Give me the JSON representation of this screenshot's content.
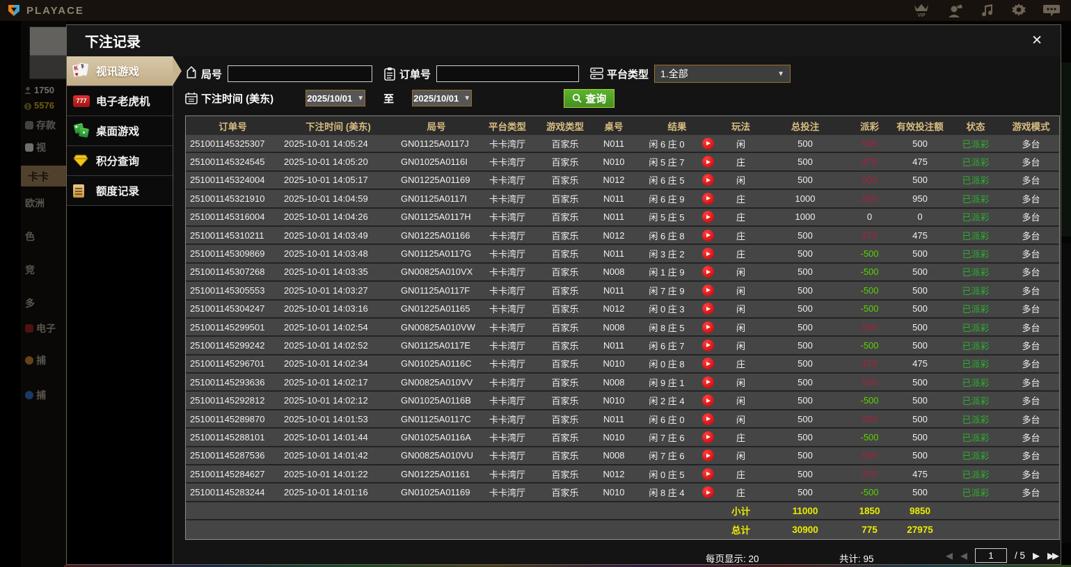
{
  "topbar": {
    "logo_text": "PLAYACE",
    "icons": [
      "vip-icon",
      "account-icon",
      "music-icon",
      "settings-icon",
      "chat-icon"
    ]
  },
  "background": {
    "balance_primary": "1750",
    "balance_secondary": "5576",
    "deposit_label": "存款",
    "menu_items": [
      "视",
      "卡卡",
      "欧洲",
      "色",
      "竞",
      "多",
      "电子",
      "捕",
      "捕"
    ]
  },
  "modal": {
    "title": "下注记录",
    "close_label": "✕",
    "tabs": [
      {
        "label": "视讯游戏",
        "active": true
      },
      {
        "label": "电子老虎机",
        "active": false
      },
      {
        "label": "桌面游戏",
        "active": false
      },
      {
        "label": "积分查询",
        "active": false
      },
      {
        "label": "额度记录",
        "active": false
      }
    ],
    "filters": {
      "round_label": "局号",
      "round_value": "",
      "order_label": "订单号",
      "order_value": "",
      "platform_label": "平台类型",
      "platform_value": "1.全部",
      "time_label": "下注时间 (美东)",
      "date_from": "2025/10/01",
      "to_label": "至",
      "date_to": "2025/10/01",
      "query_label": "查询"
    },
    "table": {
      "headers": [
        "订单号",
        "下注时间 (美东)",
        "局号",
        "平台类型",
        "游戏类型",
        "桌号",
        "结果",
        "玩法",
        "总投注",
        "派彩",
        "有效投注额",
        "状态",
        "游戏模式"
      ],
      "rows": [
        {
          "order": "251001145325307",
          "time": "2025-10-01 14:05:24",
          "round": "GN01125A0117J",
          "platform": "卡卡湾厅",
          "game_type": "百家乐",
          "table_no": "N011",
          "result": "闲 6 庄 0",
          "play": "闲",
          "total_bet": "500",
          "payout": "500",
          "valid_bet": "500",
          "status": "已派彩",
          "mode": "多台"
        },
        {
          "order": "251001145324545",
          "time": "2025-10-01 14:05:20",
          "round": "GN01025A0116I",
          "platform": "卡卡湾厅",
          "game_type": "百家乐",
          "table_no": "N010",
          "result": "闲 5 庄 7",
          "play": "庄",
          "total_bet": "500",
          "payout": "475",
          "valid_bet": "475",
          "status": "已派彩",
          "mode": "多台"
        },
        {
          "order": "251001145324004",
          "time": "2025-10-01 14:05:17",
          "round": "GN01225A01169",
          "platform": "卡卡湾厅",
          "game_type": "百家乐",
          "table_no": "N012",
          "result": "闲 6 庄 5",
          "play": "闲",
          "total_bet": "500",
          "payout": "500",
          "valid_bet": "500",
          "status": "已派彩",
          "mode": "多台"
        },
        {
          "order": "251001145321910",
          "time": "2025-10-01 14:04:59",
          "round": "GN01125A0117I",
          "platform": "卡卡湾厅",
          "game_type": "百家乐",
          "table_no": "N011",
          "result": "闲 6 庄 9",
          "play": "庄",
          "total_bet": "1000",
          "payout": "950",
          "valid_bet": "950",
          "status": "已派彩",
          "mode": "多台"
        },
        {
          "order": "251001145316004",
          "time": "2025-10-01 14:04:26",
          "round": "GN01125A0117H",
          "platform": "卡卡湾厅",
          "game_type": "百家乐",
          "table_no": "N011",
          "result": "闲 5 庄 5",
          "play": "庄",
          "total_bet": "1000",
          "payout": "0",
          "valid_bet": "0",
          "status": "已派彩",
          "mode": "多台"
        },
        {
          "order": "251001145310211",
          "time": "2025-10-01 14:03:49",
          "round": "GN01225A01166",
          "platform": "卡卡湾厅",
          "game_type": "百家乐",
          "table_no": "N012",
          "result": "闲 6 庄 8",
          "play": "庄",
          "total_bet": "500",
          "payout": "475",
          "valid_bet": "475",
          "status": "已派彩",
          "mode": "多台"
        },
        {
          "order": "251001145309869",
          "time": "2025-10-01 14:03:48",
          "round": "GN01125A0117G",
          "platform": "卡卡湾厅",
          "game_type": "百家乐",
          "table_no": "N011",
          "result": "闲 3 庄 2",
          "play": "庄",
          "total_bet": "500",
          "payout": "-500",
          "valid_bet": "500",
          "status": "已派彩",
          "mode": "多台"
        },
        {
          "order": "251001145307268",
          "time": "2025-10-01 14:03:35",
          "round": "GN00825A010VX",
          "platform": "卡卡湾厅",
          "game_type": "百家乐",
          "table_no": "N008",
          "result": "闲 1 庄 9",
          "play": "闲",
          "total_bet": "500",
          "payout": "-500",
          "valid_bet": "500",
          "status": "已派彩",
          "mode": "多台"
        },
        {
          "order": "251001145305553",
          "time": "2025-10-01 14:03:27",
          "round": "GN01125A0117F",
          "platform": "卡卡湾厅",
          "game_type": "百家乐",
          "table_no": "N011",
          "result": "闲 7 庄 9",
          "play": "闲",
          "total_bet": "500",
          "payout": "-500",
          "valid_bet": "500",
          "status": "已派彩",
          "mode": "多台"
        },
        {
          "order": "251001145304247",
          "time": "2025-10-01 14:03:16",
          "round": "GN01225A01165",
          "platform": "卡卡湾厅",
          "game_type": "百家乐",
          "table_no": "N012",
          "result": "闲 0 庄 3",
          "play": "闲",
          "total_bet": "500",
          "payout": "-500",
          "valid_bet": "500",
          "status": "已派彩",
          "mode": "多台"
        },
        {
          "order": "251001145299501",
          "time": "2025-10-01 14:02:54",
          "round": "GN00825A010VW",
          "platform": "卡卡湾厅",
          "game_type": "百家乐",
          "table_no": "N008",
          "result": "闲 8 庄 5",
          "play": "闲",
          "total_bet": "500",
          "payout": "500",
          "valid_bet": "500",
          "status": "已派彩",
          "mode": "多台"
        },
        {
          "order": "251001145299242",
          "time": "2025-10-01 14:02:52",
          "round": "GN01125A0117E",
          "platform": "卡卡湾厅",
          "game_type": "百家乐",
          "table_no": "N011",
          "result": "闲 6 庄 7",
          "play": "闲",
          "total_bet": "500",
          "payout": "-500",
          "valid_bet": "500",
          "status": "已派彩",
          "mode": "多台"
        },
        {
          "order": "251001145296701",
          "time": "2025-10-01 14:02:34",
          "round": "GN01025A0116C",
          "platform": "卡卡湾厅",
          "game_type": "百家乐",
          "table_no": "N010",
          "result": "闲 0 庄 8",
          "play": "庄",
          "total_bet": "500",
          "payout": "475",
          "valid_bet": "475",
          "status": "已派彩",
          "mode": "多台"
        },
        {
          "order": "251001145293636",
          "time": "2025-10-01 14:02:17",
          "round": "GN00825A010VV",
          "platform": "卡卡湾厅",
          "game_type": "百家乐",
          "table_no": "N008",
          "result": "闲 9 庄 1",
          "play": "闲",
          "total_bet": "500",
          "payout": "500",
          "valid_bet": "500",
          "status": "已派彩",
          "mode": "多台"
        },
        {
          "order": "251001145292812",
          "time": "2025-10-01 14:02:12",
          "round": "GN01025A0116B",
          "platform": "卡卡湾厅",
          "game_type": "百家乐",
          "table_no": "N010",
          "result": "闲 2 庄 4",
          "play": "闲",
          "total_bet": "500",
          "payout": "-500",
          "valid_bet": "500",
          "status": "已派彩",
          "mode": "多台"
        },
        {
          "order": "251001145289870",
          "time": "2025-10-01 14:01:53",
          "round": "GN01125A0117C",
          "platform": "卡卡湾厅",
          "game_type": "百家乐",
          "table_no": "N011",
          "result": "闲 6 庄 0",
          "play": "闲",
          "total_bet": "500",
          "payout": "500",
          "valid_bet": "500",
          "status": "已派彩",
          "mode": "多台"
        },
        {
          "order": "251001145288101",
          "time": "2025-10-01 14:01:44",
          "round": "GN01025A0116A",
          "platform": "卡卡湾厅",
          "game_type": "百家乐",
          "table_no": "N010",
          "result": "闲 7 庄 6",
          "play": "庄",
          "total_bet": "500",
          "payout": "-500",
          "valid_bet": "500",
          "status": "已派彩",
          "mode": "多台"
        },
        {
          "order": "251001145287536",
          "time": "2025-10-01 14:01:42",
          "round": "GN00825A010VU",
          "platform": "卡卡湾厅",
          "game_type": "百家乐",
          "table_no": "N008",
          "result": "闲 7 庄 6",
          "play": "闲",
          "total_bet": "500",
          "payout": "500",
          "valid_bet": "500",
          "status": "已派彩",
          "mode": "多台"
        },
        {
          "order": "251001145284627",
          "time": "2025-10-01 14:01:22",
          "round": "GN01225A01161",
          "platform": "卡卡湾厅",
          "game_type": "百家乐",
          "table_no": "N012",
          "result": "闲 0 庄 5",
          "play": "庄",
          "total_bet": "500",
          "payout": "475",
          "valid_bet": "475",
          "status": "已派彩",
          "mode": "多台"
        },
        {
          "order": "251001145283244",
          "time": "2025-10-01 14:01:16",
          "round": "GN01025A01169",
          "platform": "卡卡湾厅",
          "game_type": "百家乐",
          "table_no": "N010",
          "result": "闲 8 庄 4",
          "play": "庄",
          "total_bet": "500",
          "payout": "-500",
          "valid_bet": "500",
          "status": "已派彩",
          "mode": "多台"
        }
      ],
      "subtotal": {
        "label": "小计",
        "total_bet": "11000",
        "payout": "1850",
        "valid_bet": "9850"
      },
      "grand_total": {
        "label": "总计",
        "total_bet": "30900",
        "payout": "775",
        "valid_bet": "27975"
      }
    },
    "pagination": {
      "per_page": "每页显示: 20",
      "total": "共计: 95",
      "page": "1",
      "of": "/  5"
    }
  },
  "colors": {
    "accent_tan": "#c2ad87",
    "gold_header": "#d8bc80",
    "win_red": "#a82040",
    "loss_green": "#58d400",
    "status_green": "#2fae2f",
    "total_yellow": "#ecec00",
    "query_green": "#5cb42e"
  }
}
